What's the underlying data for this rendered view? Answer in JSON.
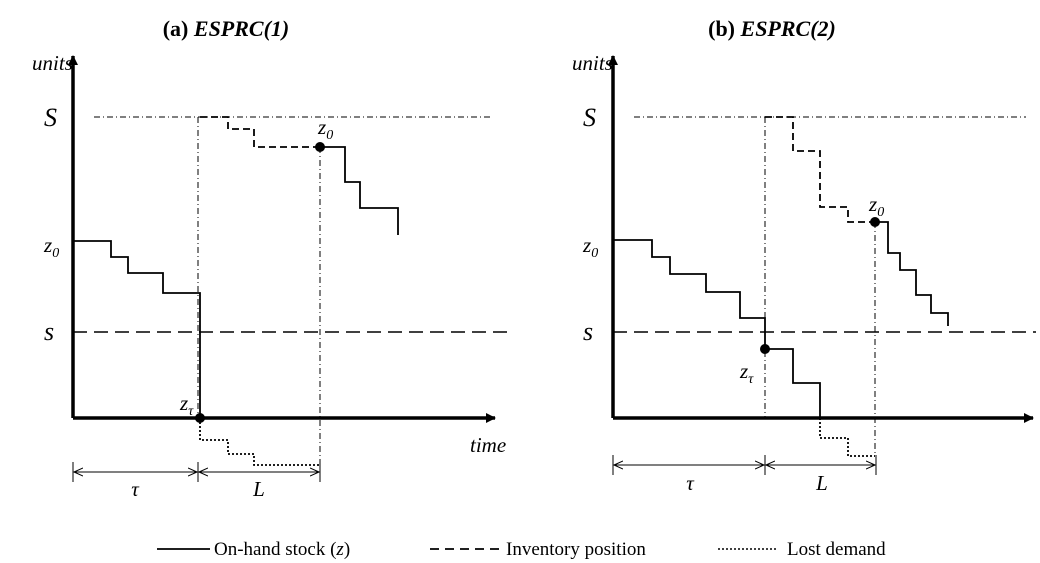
{
  "panels": [
    {
      "title_prefix": "(a) ",
      "title_name": "ESPRC(1)",
      "y_axis_label": "units",
      "x_axis_label": "time",
      "level_S": "S",
      "level_s": "s",
      "level_z0": "z",
      "z0_sub": "0",
      "point_z0": "z",
      "point_z0_sub": "0",
      "point_ztau": "z",
      "point_ztau_sub": "τ",
      "interval_tau": "τ",
      "interval_L": "L"
    },
    {
      "title_prefix": "(b) ",
      "title_name": "ESPRC(2)",
      "y_axis_label": "units",
      "level_S": "S",
      "level_s": "s",
      "level_z0": "z",
      "z0_sub": "0",
      "point_z0": "z",
      "point_z0_sub": "0",
      "point_ztau": "z",
      "point_ztau_sub": "τ",
      "interval_tau": "τ",
      "interval_L": "L"
    }
  ],
  "legend": {
    "onhand_prefix": "On-hand stock (",
    "onhand_var": "z",
    "onhand_suffix": ")",
    "inventory_position": "Inventory position",
    "lost_demand": "Lost demand"
  }
}
